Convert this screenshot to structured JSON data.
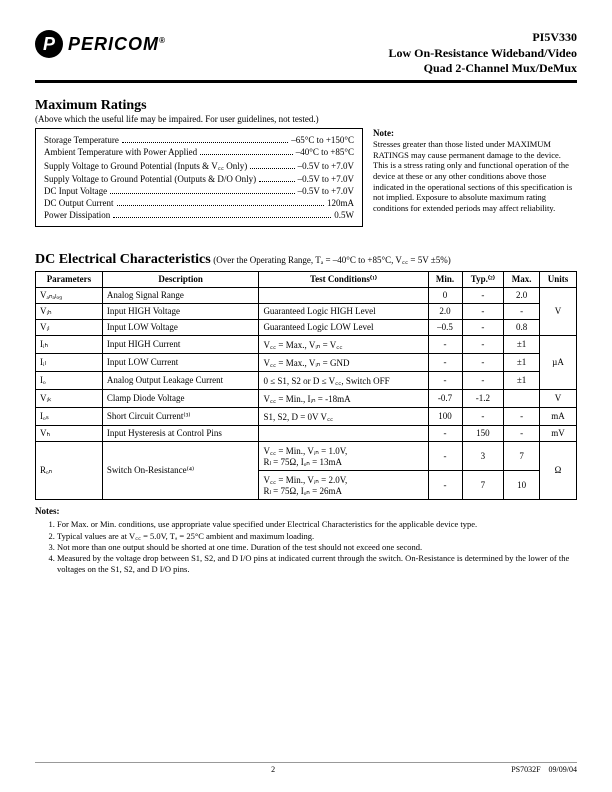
{
  "header": {
    "company": "PERICOM",
    "part": "PI5V330",
    "subtitle1": "Low On-Resistance Wideband/Video",
    "subtitle2": "Quad 2-Channel Mux/DeMux"
  },
  "maxRatings": {
    "title": "Maximum Ratings",
    "subtitle": "(Above which the useful life may be impaired. For user guidelines, not tested.)",
    "rows": [
      {
        "label": "Storage Temperature",
        "value": "–65°C to +150°C"
      },
      {
        "label": "Ambient Temperature with Power Applied",
        "value": "–40°C to +85°C"
      },
      {
        "label": "Supply Voltage to Ground Potential (Inputs & V꜀꜀ Only)",
        "value": "–0.5V to +7.0V"
      },
      {
        "label": "Supply Voltage to Ground Potential (Outputs & D/O Only)",
        "value": "–0.5V to +7.0V"
      },
      {
        "label": "DC Input Voltage",
        "value": "–0.5V to +7.0V"
      },
      {
        "label": "DC Output Current",
        "value": "120mA"
      },
      {
        "label": "Power Dissipation",
        "value": "0.5W"
      }
    ],
    "noteTitle": "Note:",
    "noteText": "Stresses greater than those listed under MAXIMUM RATINGS may cause permanent damage to the device. This is a stress rating only and functional operation of the device at these or any other conditions above those indicated in the operational sections of this specification is not implied. Exposure to absolute maximum rating conditions for extended periods may affect reliability."
  },
  "dc": {
    "title": "DC Electrical Characteristics",
    "subtitle": "(Over the Operating Range, Tₐ = –40°C to +85°C, V꜀꜀ = 5V ±5%)",
    "headers": [
      "Parameters",
      "Description",
      "Test Conditions⁽¹⁾",
      "Min.",
      "Typ.⁽²⁾",
      "Max.",
      "Units"
    ],
    "rows": [
      {
        "param": "Vₐₙₐₗₒ₉",
        "desc": "Analog Signal Range",
        "cond": "",
        "min": "0",
        "typ": "-",
        "max": "2.0",
        "units": ""
      },
      {
        "param": "Vᵢₕ",
        "desc": "Input HIGH Voltage",
        "cond": "Guaranteed Logic HIGH Level",
        "min": "2.0",
        "typ": "-",
        "max": "-",
        "units": ""
      },
      {
        "param": "Vᵢₗ",
        "desc": "Input LOW Voltage",
        "cond": "Guaranteed Logic LOW Level",
        "min": "–0.5",
        "typ": "-",
        "max": "0.8",
        "units": ""
      },
      {
        "param": "Iᵢₕ",
        "desc": "Input HIGH Current",
        "cond": "V꜀꜀ = Max., Vᵢₙ = V꜀꜀",
        "min": "-",
        "typ": "-",
        "max": "±1",
        "units": ""
      },
      {
        "param": "Iᵢₗ",
        "desc": "Input LOW Current",
        "cond": "V꜀꜀ = Max., Vᵢₙ = GND",
        "min": "-",
        "typ": "-",
        "max": "±1",
        "units": ""
      },
      {
        "param": "Iₒ",
        "desc": "Analog Output Leakage Current",
        "cond": "0 ≤ S1, S2 or D ≤ V꜀꜀, Switch OFF",
        "min": "-",
        "typ": "-",
        "max": "±1",
        "units": ""
      },
      {
        "param": "Vᵢₖ",
        "desc": "Clamp Diode Voltage",
        "cond": "V꜀꜀ = Min., Iᵢₙ = -18mA",
        "min": "-0.7",
        "typ": "-1.2",
        "max": "",
        "units": "V"
      },
      {
        "param": "Iₒₛ",
        "desc": "Short Circuit Current⁽³⁾",
        "cond": "S1, S2, D = 0V V꜀꜀",
        "min": "100",
        "typ": "-",
        "max": "-",
        "units": "mA"
      },
      {
        "param": "Vₕ",
        "desc": "Input Hysteresis at Control Pins",
        "cond": "",
        "min": "-",
        "typ": "150",
        "max": "-",
        "units": "mV"
      }
    ],
    "ronParam": "Rₒₙ",
    "ronDesc": "Switch On-Resistance⁽⁴⁾",
    "ron1": {
      "cond": "V꜀꜀ = Min., Vᵢₙ = 1.0V,\nRₗ = 75Ω, Iₒₙ = 13mA",
      "min": "-",
      "typ": "3",
      "max": "7"
    },
    "ron2": {
      "cond": "V꜀꜀ = Min., Vᵢₙ = 2.0V,\nRₗ = 75Ω, Iₒₙ = 26mA",
      "min": "-",
      "typ": "7",
      "max": "10"
    },
    "ronUnits": "Ω",
    "unitsV": "V",
    "unitsUA": "µA"
  },
  "notes": {
    "title": "Notes:",
    "items": [
      "For Max. or Min. conditions, use appropriate value specified under Electrical Characteristics for the applicable device type.",
      "Typical values are at V꜀꜀ = 5.0V, Tₐ = 25°C ambient and maximum loading.",
      "Not more than one output should be shorted at one time. Duration of the test should not exceed one second.",
      "Measured by the voltage drop between S1, S2, and D I/O pins at indicated current through the switch. On-Resistance is determined by the lower of the voltages on the S1, S2, and D I/O pins."
    ]
  },
  "footer": {
    "page": "2",
    "doc": "PS7032F",
    "date": "09/09/04"
  }
}
